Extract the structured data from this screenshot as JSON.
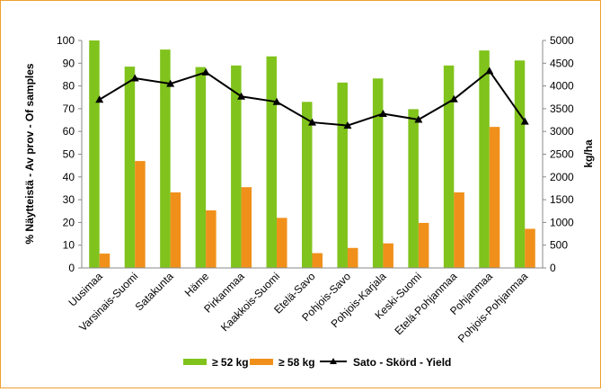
{
  "chart_data": {
    "type": "bar",
    "categories": [
      "Uusimaa",
      "Varsinais-Suomi",
      "Satakunta",
      "Häme",
      "Pirkanmaa",
      "Kaakkois-Suomi",
      "Etelä-Savo",
      "Pohjois-Savo",
      "Pohjois-Karjala",
      "Keski-Suomi",
      "Etelä-Pohjanmaa",
      "Pohjanmaa",
      "Pohjois-Pohjanmaa"
    ],
    "series": [
      {
        "name": "≥ 52 kg",
        "kind": "bar",
        "axis": "left",
        "color": "#80c31c",
        "values": [
          100,
          88.5,
          96,
          88.3,
          89,
          93,
          73,
          81.5,
          83.3,
          69.8,
          89,
          95.6,
          91.2
        ]
      },
      {
        "name": "≥ 58 kg",
        "kind": "bar",
        "axis": "left",
        "color": "#f0901a",
        "values": [
          6.3,
          47,
          33.2,
          25.3,
          35.5,
          22,
          6.5,
          8.8,
          10.8,
          19.8,
          33.2,
          62,
          17.2
        ]
      },
      {
        "name": "Sato - Skörd - Yield",
        "kind": "line",
        "axis": "right",
        "color": "#000000",
        "marker": "triangle",
        "values": [
          3700,
          4170,
          4050,
          4300,
          3770,
          3650,
          3200,
          3130,
          3390,
          3260,
          3710,
          4330,
          3220
        ]
      }
    ],
    "ylabel": "% Näytteistä - Av prov - Of samples",
    "y2label": "kg/ha",
    "ylim": [
      0,
      100
    ],
    "y2lim": [
      0,
      5000
    ],
    "yticks": [
      "0",
      "10",
      "20",
      "30",
      "40",
      "50",
      "60",
      "70",
      "80",
      "90",
      "100"
    ],
    "y2ticks": [
      "0",
      "500",
      "1000",
      "1500",
      "2000",
      "2500",
      "3000",
      "3500",
      "4000",
      "4500",
      "5000"
    ],
    "grid": false,
    "legend": "bottom"
  }
}
